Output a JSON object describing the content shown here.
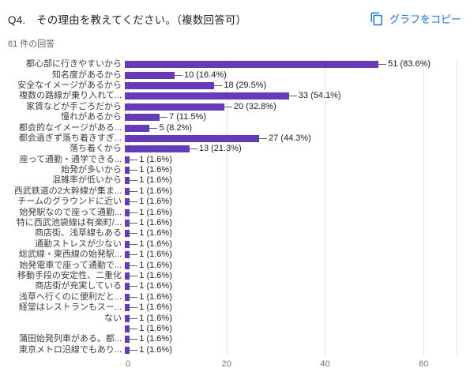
{
  "header": {
    "title": "Q4.　その理由を教えてください。（複数回答可）",
    "responses_count": "61 件の回答",
    "copy_button_label": "グラフをコピー"
  },
  "colors": {
    "bar": "#673ab7",
    "accent_blue": "#1a73e8",
    "gridline": "#e3e3e3",
    "annotation_text": "#212121",
    "label_text": "#3c4043",
    "muted_text": "#5f6368"
  },
  "chart_data": {
    "type": "bar",
    "orientation": "horizontal",
    "title": "Q4.　その理由を教えてください。（複数回答可）",
    "subtitle": "61 件の回答",
    "categories": [
      "都心部に行きやすいから",
      "知名度があるから",
      "安全なイメージがあるから",
      "複数の路線が乗り入れて...",
      "家賃などが手ごろだから",
      "憧れがあるから",
      "都会的なイメージがある...",
      "都会過ぎず落ち着きすぎ...",
      "落ち着くから",
      "座って通勤・通学できる...",
      "始発が多いから",
      "混雑率が低いから",
      "西武鉄道の2大幹線が集ま...",
      "チームのグラウンドに近い",
      "始発駅なので座って通勤...",
      "特に西武池袋線は有楽町/...",
      "商店街、浅草線もある",
      "通勤ストレスが少ない",
      "総武線・東西線の始発駅...",
      "始発電車で座って通勤で...",
      "移動手段の安定性、二重化",
      "商店街が充実している",
      "浅草へ行くのに便利だと...",
      "経堂はレストランもスー...",
      "ない",
      "",
      "蒲田始発列車がある。都...",
      "東京メトロ沿線でもあり..."
    ],
    "values": [
      51,
      10,
      18,
      33,
      20,
      7,
      5,
      27,
      13,
      1,
      1,
      1,
      1,
      1,
      1,
      1,
      1,
      1,
      1,
      1,
      1,
      1,
      1,
      1,
      1,
      1,
      1,
      1
    ],
    "annotations": [
      "51 (83.6%)",
      "10 (16.4%)",
      "18 (29.5%)",
      "33 (54.1%)",
      "20 (32.8%)",
      "7 (11.5%)",
      "5 (8.2%)",
      "27 (44.3%)",
      "13 (21.3%)",
      "1 (1.6%)",
      "1 (1.6%)",
      "1 (1.6%)",
      "1 (1.6%)",
      "1 (1.6%)",
      "1 (1.6%)",
      "1 (1.6%)",
      "1 (1.6%)",
      "1 (1.6%)",
      "1 (1.6%)",
      "1 (1.6%)",
      "1 (1.6%)",
      "1 (1.6%)",
      "1 (1.6%)",
      "1 (1.6%)",
      "1 (1.6%)",
      "1 (1.6%)",
      "1 (1.6%)",
      "1 (1.6%)"
    ],
    "xlim": [
      0,
      66.7
    ],
    "xticks": [
      0,
      20,
      40,
      60
    ],
    "grid": true,
    "legend": "none"
  }
}
